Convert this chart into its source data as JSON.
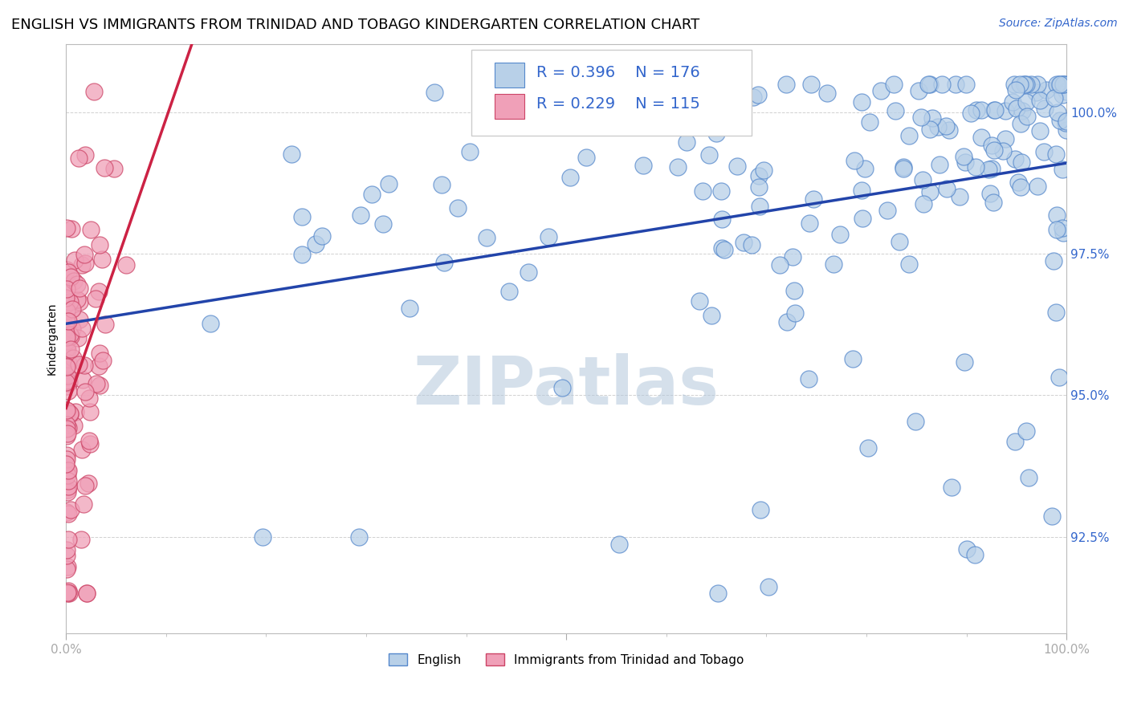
{
  "title": "ENGLISH VS IMMIGRANTS FROM TRINIDAD AND TOBAGO KINDERGARTEN CORRELATION CHART",
  "source_text": "Source: ZipAtlas.com",
  "ylabel": "Kindergarten",
  "xmin": 0.0,
  "xmax": 1.0,
  "ymin": 0.908,
  "ymax": 1.012,
  "yticks": [
    0.925,
    0.95,
    0.975,
    1.0
  ],
  "ytick_labels": [
    "92.5%",
    "95.0%",
    "97.5%",
    "100.0%"
  ],
  "legend_R_blue": "R = 0.396",
  "legend_N_blue": "N = 176",
  "legend_R_pink": "R = 0.229",
  "legend_N_pink": "N = 115",
  "blue_fill": "#b8d0e8",
  "blue_edge": "#5588cc",
  "pink_fill": "#f0a0b8",
  "pink_edge": "#cc4466",
  "blue_line_color": "#2244aa",
  "pink_line_color": "#cc2244",
  "watermark": "ZIPatlas",
  "watermark_color_r": 180,
  "watermark_color_g": 200,
  "watermark_color_b": 220,
  "title_fontsize": 13,
  "axis_label_fontsize": 10,
  "tick_fontsize": 11,
  "legend_fontsize": 14,
  "source_fontsize": 10,
  "blue_N": 176,
  "pink_N": 115
}
